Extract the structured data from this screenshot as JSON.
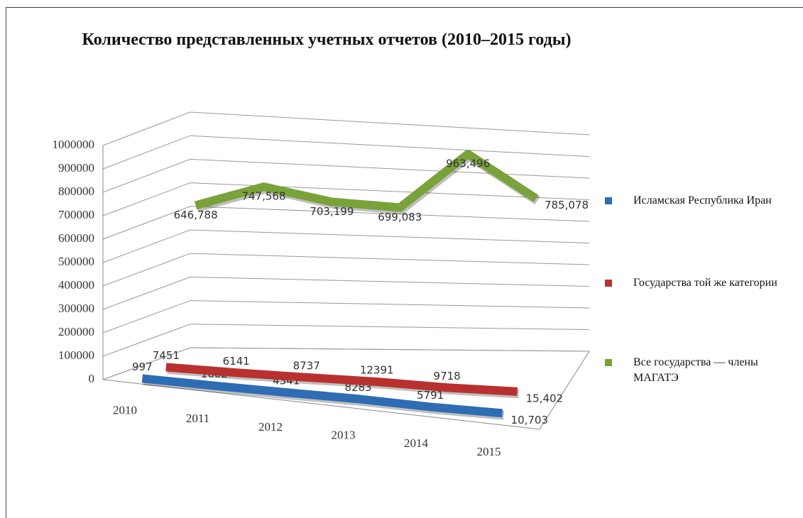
{
  "chart_data": {
    "type": "line3d",
    "title": "Количество представленных учетных отчетов (2010–2015 годы)",
    "categories": [
      "2010",
      "2011",
      "2012",
      "2013",
      "2014",
      "2015"
    ],
    "ylim": [
      0,
      1000000
    ],
    "yticks": [
      0,
      100000,
      200000,
      300000,
      400000,
      500000,
      600000,
      700000,
      800000,
      900000,
      1000000
    ],
    "grid": true,
    "legend": "right",
    "series": [
      {
        "name": "Исламская Республика Иран",
        "color": "#2e6db4",
        "values": [
          997,
          1602,
          4341,
          8283,
          5791,
          10703
        ],
        "value_labels": [
          "997",
          "1602",
          "4341",
          "8283",
          "5791",
          "10,703"
        ]
      },
      {
        "name": "Государства той же категории",
        "color": "#b8312f",
        "values": [
          7451,
          6141,
          8737,
          12391,
          9718,
          15402
        ],
        "value_labels": [
          "7451",
          "6141",
          "8737",
          "12391",
          "9718",
          "15,402"
        ]
      },
      {
        "name": "Все государства — члены МАГАТЭ",
        "color": "#7aa23a",
        "values": [
          646788,
          747568,
          703199,
          699083,
          963496,
          785078
        ],
        "value_labels": [
          "646,788",
          "747,568",
          "703,199",
          "699,083",
          "963,496",
          "785,078"
        ]
      }
    ]
  }
}
